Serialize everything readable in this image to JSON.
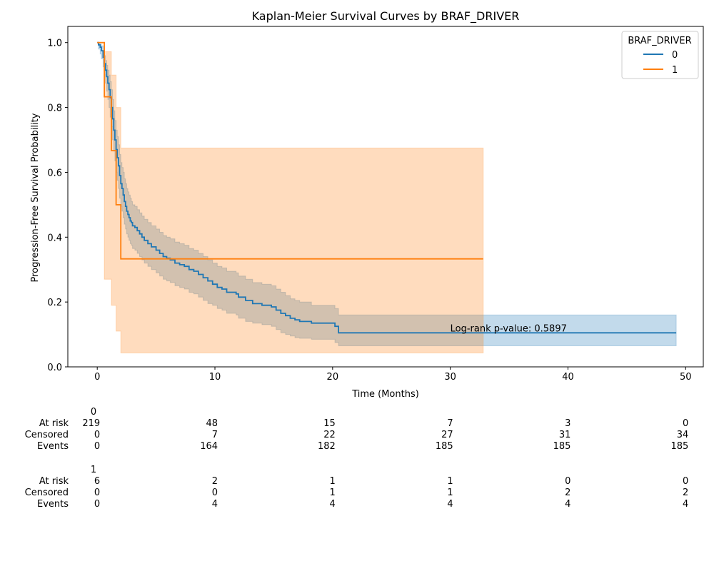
{
  "chart_data": {
    "type": "line",
    "title": "Kaplan-Meier Survival Curves by BRAF_DRIVER",
    "xlabel": "Time (Months)",
    "ylabel": "Progression-Free Survival Probability",
    "xlim": [
      -2.5,
      51.5
    ],
    "ylim": [
      0.0,
      1.05
    ],
    "xticks": [
      0,
      10,
      20,
      30,
      40,
      50
    ],
    "xtick_labels": [
      "0",
      "10",
      "20",
      "30",
      "40",
      "50"
    ],
    "yticks": [
      0.0,
      0.2,
      0.4,
      0.6,
      0.8,
      1.0
    ],
    "ytick_labels": [
      "0.0",
      "0.2",
      "0.4",
      "0.6",
      "0.8",
      "1.0"
    ],
    "grid": false,
    "legend": {
      "title": "BRAF_DRIVER",
      "placement": "top-right"
    },
    "annotation": {
      "text": "Log-rank p-value: 0.5897",
      "x": 30,
      "y": 0.105
    },
    "series": [
      {
        "name": "0",
        "color": "#1f77b4",
        "ci_color": "#1f77b4",
        "step_x": [
          0,
          0.1,
          0.25,
          0.35,
          0.5,
          0.6,
          0.7,
          0.8,
          0.9,
          1.0,
          1.1,
          1.2,
          1.3,
          1.4,
          1.5,
          1.6,
          1.7,
          1.8,
          1.9,
          2.0,
          2.1,
          2.2,
          2.3,
          2.4,
          2.5,
          2.6,
          2.7,
          2.8,
          2.9,
          3.0,
          3.2,
          3.4,
          3.6,
          3.8,
          4.0,
          4.3,
          4.6,
          5.0,
          5.3,
          5.6,
          5.9,
          6.2,
          6.6,
          7.0,
          7.4,
          7.8,
          8.2,
          8.6,
          9.0,
          9.4,
          9.8,
          10.2,
          10.6,
          11.0,
          11.8,
          12.0,
          12.6,
          13.2,
          14.0,
          14.8,
          15.2,
          15.6,
          16.0,
          16.4,
          16.8,
          17.2,
          18.2,
          20.2,
          20.5,
          49.2
        ],
        "step_y": [
          1.0,
          0.993,
          0.986,
          0.975,
          0.955,
          0.935,
          0.915,
          0.895,
          0.875,
          0.855,
          0.83,
          0.8,
          0.765,
          0.73,
          0.7,
          0.67,
          0.645,
          0.62,
          0.59,
          0.565,
          0.55,
          0.53,
          0.51,
          0.495,
          0.48,
          0.47,
          0.46,
          0.45,
          0.445,
          0.435,
          0.43,
          0.42,
          0.41,
          0.4,
          0.39,
          0.38,
          0.37,
          0.36,
          0.35,
          0.34,
          0.335,
          0.33,
          0.32,
          0.315,
          0.31,
          0.3,
          0.295,
          0.285,
          0.275,
          0.265,
          0.255,
          0.245,
          0.24,
          0.23,
          0.225,
          0.215,
          0.205,
          0.195,
          0.19,
          0.185,
          0.175,
          0.165,
          0.158,
          0.15,
          0.145,
          0.14,
          0.135,
          0.125,
          0.105,
          0.105
        ],
        "ci_lower": [
          1.0,
          0.98,
          0.965,
          0.95,
          0.925,
          0.9,
          0.875,
          0.85,
          0.825,
          0.8,
          0.77,
          0.74,
          0.7,
          0.665,
          0.635,
          0.6,
          0.575,
          0.55,
          0.52,
          0.495,
          0.48,
          0.46,
          0.44,
          0.425,
          0.41,
          0.4,
          0.39,
          0.38,
          0.375,
          0.365,
          0.36,
          0.35,
          0.34,
          0.33,
          0.32,
          0.31,
          0.3,
          0.29,
          0.28,
          0.27,
          0.265,
          0.26,
          0.25,
          0.245,
          0.24,
          0.23,
          0.225,
          0.215,
          0.205,
          0.195,
          0.19,
          0.18,
          0.175,
          0.165,
          0.16,
          0.15,
          0.14,
          0.135,
          0.13,
          0.125,
          0.115,
          0.105,
          0.1,
          0.095,
          0.09,
          0.088,
          0.085,
          0.075,
          0.065,
          0.065
        ],
        "ci_upper": [
          1.0,
          0.998,
          0.995,
          0.99,
          0.975,
          0.96,
          0.945,
          0.93,
          0.915,
          0.9,
          0.88,
          0.855,
          0.825,
          0.79,
          0.76,
          0.73,
          0.71,
          0.685,
          0.655,
          0.63,
          0.615,
          0.6,
          0.58,
          0.565,
          0.55,
          0.54,
          0.53,
          0.52,
          0.51,
          0.5,
          0.495,
          0.485,
          0.475,
          0.465,
          0.455,
          0.445,
          0.435,
          0.425,
          0.415,
          0.405,
          0.4,
          0.395,
          0.385,
          0.38,
          0.375,
          0.365,
          0.36,
          0.35,
          0.34,
          0.33,
          0.32,
          0.31,
          0.305,
          0.295,
          0.29,
          0.28,
          0.27,
          0.26,
          0.255,
          0.25,
          0.24,
          0.23,
          0.22,
          0.21,
          0.205,
          0.2,
          0.19,
          0.18,
          0.16,
          0.16
        ]
      },
      {
        "name": "1",
        "color": "#ff7f0e",
        "ci_color": "#ff7f0e",
        "step_x": [
          0,
          0.6,
          1.2,
          1.6,
          2.0,
          32.8
        ],
        "step_y": [
          1.0,
          0.833,
          0.667,
          0.5,
          0.333,
          0.333
        ],
        "ci_lower": [
          1.0,
          0.27,
          0.19,
          0.11,
          0.043,
          0.043
        ],
        "ci_upper": [
          1.0,
          0.972,
          0.9,
          0.8,
          0.675,
          0.675
        ]
      }
    ]
  },
  "risk_tables": [
    {
      "group": "0",
      "times": [
        0,
        10,
        20,
        30,
        40,
        50
      ],
      "rows": [
        {
          "label": "At risk",
          "values": [
            "219",
            "48",
            "15",
            "7",
            "3",
            "0"
          ]
        },
        {
          "label": "Censored",
          "values": [
            "0",
            "7",
            "22",
            "27",
            "31",
            "34"
          ]
        },
        {
          "label": "Events",
          "values": [
            "0",
            "164",
            "182",
            "185",
            "185",
            "185"
          ]
        }
      ]
    },
    {
      "group": "1",
      "times": [
        0,
        10,
        20,
        30,
        40,
        50
      ],
      "rows": [
        {
          "label": "At risk",
          "values": [
            "6",
            "2",
            "1",
            "1",
            "0",
            "0"
          ]
        },
        {
          "label": "Censored",
          "values": [
            "0",
            "0",
            "1",
            "1",
            "2",
            "2"
          ]
        },
        {
          "label": "Events",
          "values": [
            "0",
            "4",
            "4",
            "4",
            "4",
            "4"
          ]
        }
      ]
    }
  ]
}
